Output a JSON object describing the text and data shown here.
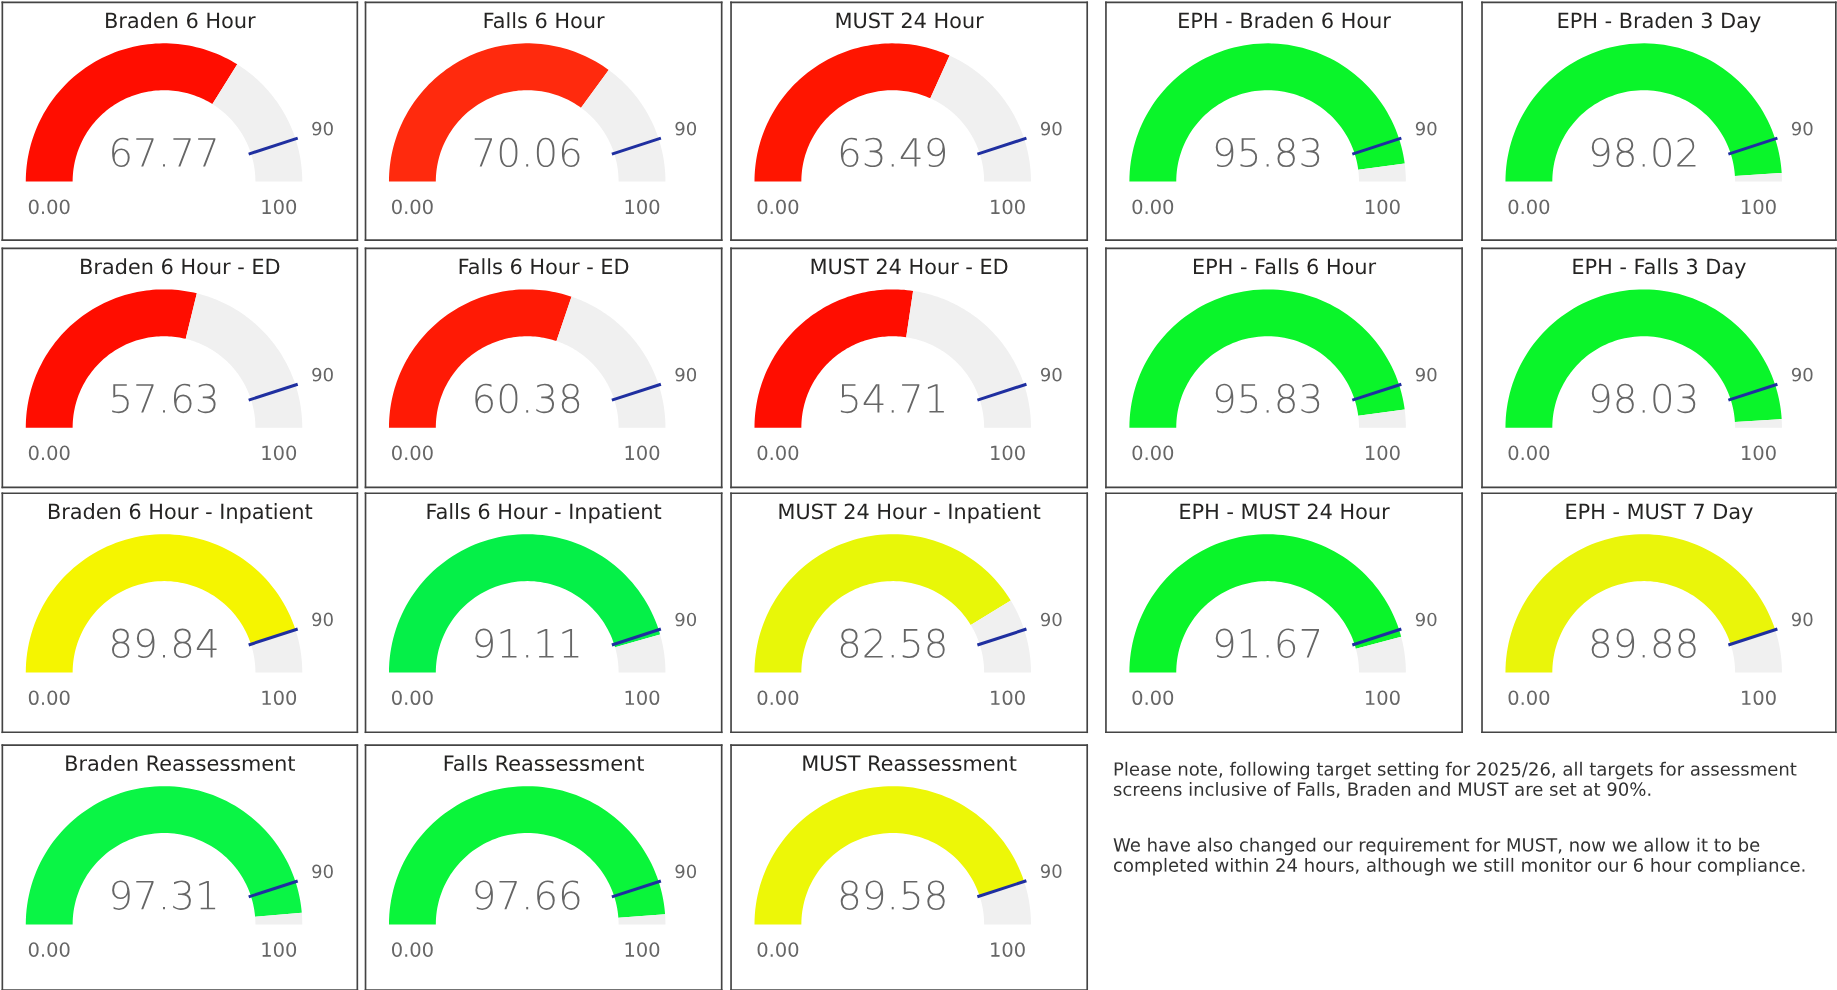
{
  "chart_data": [
    {
      "type": "donut",
      "title": "Braden 6 Hour",
      "categories": [
        null,
        null,
        null
      ],
      "values": [
        67.77,
        22.23,
        10
      ],
      "colors": [
        "#ff0d00",
        "#f0f0f0",
        "#f0f0f0"
      ],
      "annotations": [
        "67.77",
        "0.00",
        "90",
        "100"
      ]
    },
    {
      "type": "donut",
      "title": "Falls 6 Hour",
      "categories": [
        null,
        null,
        null
      ],
      "values": [
        70.06,
        19.94,
        10
      ],
      "colors": [
        "#ff2a0d",
        "#f0f0f0",
        "#f0f0f0"
      ],
      "annotations": [
        "70.06",
        "0.00",
        "90",
        "100"
      ]
    },
    {
      "type": "donut",
      "title": "MUST 24 Hour",
      "categories": [
        null,
        null,
        null
      ],
      "values": [
        63.49,
        26.51,
        10
      ],
      "colors": [
        "#ff1500",
        "#f0f0f0",
        "#f0f0f0"
      ],
      "annotations": [
        "63.49",
        "0.00",
        "90",
        "100"
      ]
    },
    {
      "type": "donut",
      "title": "EPH - Braden 6 Hour",
      "categories": [
        null,
        null,
        null
      ],
      "values": [
        90,
        5.83,
        4.17
      ],
      "colors": [
        "#0af52a",
        "#0af52a",
        "#f0f0f0"
      ],
      "annotations": [
        "95.83",
        "0.00",
        "90",
        "100"
      ]
    },
    {
      "type": "donut",
      "title": "EPH - Braden 3 Day",
      "categories": [
        null,
        null,
        null
      ],
      "values": [
        90,
        8.02,
        1.98
      ],
      "colors": [
        "#0af52a",
        "#0af52a",
        "#f0f0f0"
      ],
      "annotations": [
        "98.02",
        "0.00",
        "90",
        "100"
      ]
    },
    {
      "type": "donut",
      "title": "Braden 6 Hour - ED",
      "categories": [
        null,
        null,
        null
      ],
      "values": [
        57.63,
        32.37,
        10
      ],
      "colors": [
        "#ff0d00",
        "#f0f0f0",
        "#f0f0f0"
      ],
      "annotations": [
        "57.63",
        "0.00",
        "90",
        "100"
      ]
    },
    {
      "type": "donut",
      "title": "Falls 6 Hour - ED",
      "categories": [
        null,
        null,
        null
      ],
      "values": [
        60.38,
        29.62,
        10
      ],
      "colors": [
        "#ff1a05",
        "#f0f0f0",
        "#f0f0f0"
      ],
      "annotations": [
        "60.38",
        "0.00",
        "90",
        "100"
      ]
    },
    {
      "type": "donut",
      "title": "MUST 24 Hour - ED",
      "categories": [
        null,
        null,
        null
      ],
      "values": [
        54.71,
        35.29,
        10
      ],
      "colors": [
        "#ff0d00",
        "#f0f0f0",
        "#f0f0f0"
      ],
      "annotations": [
        "54.71",
        "0.00",
        "90",
        "100"
      ]
    },
    {
      "type": "donut",
      "title": "EPH - Falls 6 Hour",
      "categories": [
        null,
        null,
        null
      ],
      "values": [
        90,
        5.83,
        4.17
      ],
      "colors": [
        "#0af52a",
        "#0af52a",
        "#f0f0f0"
      ],
      "annotations": [
        "95.83",
        "0.00",
        "90",
        "100"
      ]
    },
    {
      "type": "donut",
      "title": "EPH - Falls 3 Day",
      "categories": [
        null,
        null,
        null
      ],
      "values": [
        90,
        8.03,
        1.97
      ],
      "colors": [
        "#0af52a",
        "#0af52a",
        "#f0f0f0"
      ],
      "annotations": [
        "98.03",
        "0.00",
        "90",
        "100"
      ]
    },
    {
      "type": "donut",
      "title": "Braden 6 Hour - Inpatient",
      "categories": [
        null,
        null,
        null
      ],
      "values": [
        89.84,
        null,
        10
      ],
      "colors": [
        "#f5f500",
        "#f0f0f0",
        "#f0f0f0"
      ],
      "annotations": [
        "89.84",
        "0.00",
        "90",
        "100"
      ]
    },
    {
      "type": "donut",
      "title": "Falls 6 Hour - Inpatient",
      "categories": [
        null,
        null,
        null
      ],
      "values": [
        90,
        1.11,
        8.89
      ],
      "colors": [
        "#05f048",
        "#05f048",
        "#f0f0f0"
      ],
      "annotations": [
        "91.11",
        "0.00",
        "90",
        "100"
      ]
    },
    {
      "type": "donut",
      "title": "MUST 24 Hour - Inpatient",
      "categories": [
        null,
        null,
        null
      ],
      "values": [
        82.58,
        7.42,
        10
      ],
      "colors": [
        "#e8f708",
        "#f0f0f0",
        "#f0f0f0"
      ],
      "annotations": [
        "82.58",
        "0.00",
        "90",
        "100"
      ]
    },
    {
      "type": "donut",
      "title": "EPH - MUST 24 Hour",
      "categories": [
        null,
        null,
        null
      ],
      "values": [
        90,
        1.67,
        8.33
      ],
      "colors": [
        "#0af52a",
        "#0af52a",
        "#f0f0f0"
      ],
      "annotations": [
        "91.67",
        "0.00",
        "90",
        "100"
      ]
    },
    {
      "type": "donut",
      "title": "EPH - MUST 7 Day",
      "categories": [
        null,
        null,
        null
      ],
      "values": [
        89.88,
        null,
        10
      ],
      "colors": [
        "#eaf50a",
        "#f0f0f0",
        "#f0f0f0"
      ],
      "annotations": [
        "89.88",
        "0.00",
        "90",
        "100"
      ]
    },
    {
      "type": "donut",
      "title": "Braden Reassessment",
      "categories": [
        null,
        null,
        null
      ],
      "values": [
        90,
        7.31,
        2.69
      ],
      "colors": [
        "#0af545",
        "#0af545",
        "#f0f0f0"
      ],
      "annotations": [
        "97.31",
        "0.00",
        "90",
        "100"
      ]
    },
    {
      "type": "donut",
      "title": "Falls Reassessment",
      "categories": [
        null,
        null,
        null
      ],
      "values": [
        90,
        7.66,
        2.34
      ],
      "colors": [
        "#0af53a",
        "#0af53a",
        "#f0f0f0"
      ],
      "annotations": [
        "97.66",
        "0.00",
        "90",
        "100"
      ]
    },
    {
      "type": "donut",
      "title": "MUST Reassessment",
      "categories": [
        null,
        null,
        null
      ],
      "values": [
        89.58,
        null,
        10
      ],
      "colors": [
        "#edf707",
        "#f0f0f0",
        "#f0f0f0"
      ],
      "annotations": [
        "89.58",
        "0.00",
        "90",
        "100"
      ]
    },
    {
      "type": "other",
      "annotations": [
        "Please note, following target setting for 2025/26, all targets for assessment screens inclusive of Falls, Braden and MUST are set at 90%.",
        "We have also changed our requirement for MUST, now we allow it to be completed within 24 hours, although we still monitor our 6 hour compliance."
      ]
    }
  ]
}
